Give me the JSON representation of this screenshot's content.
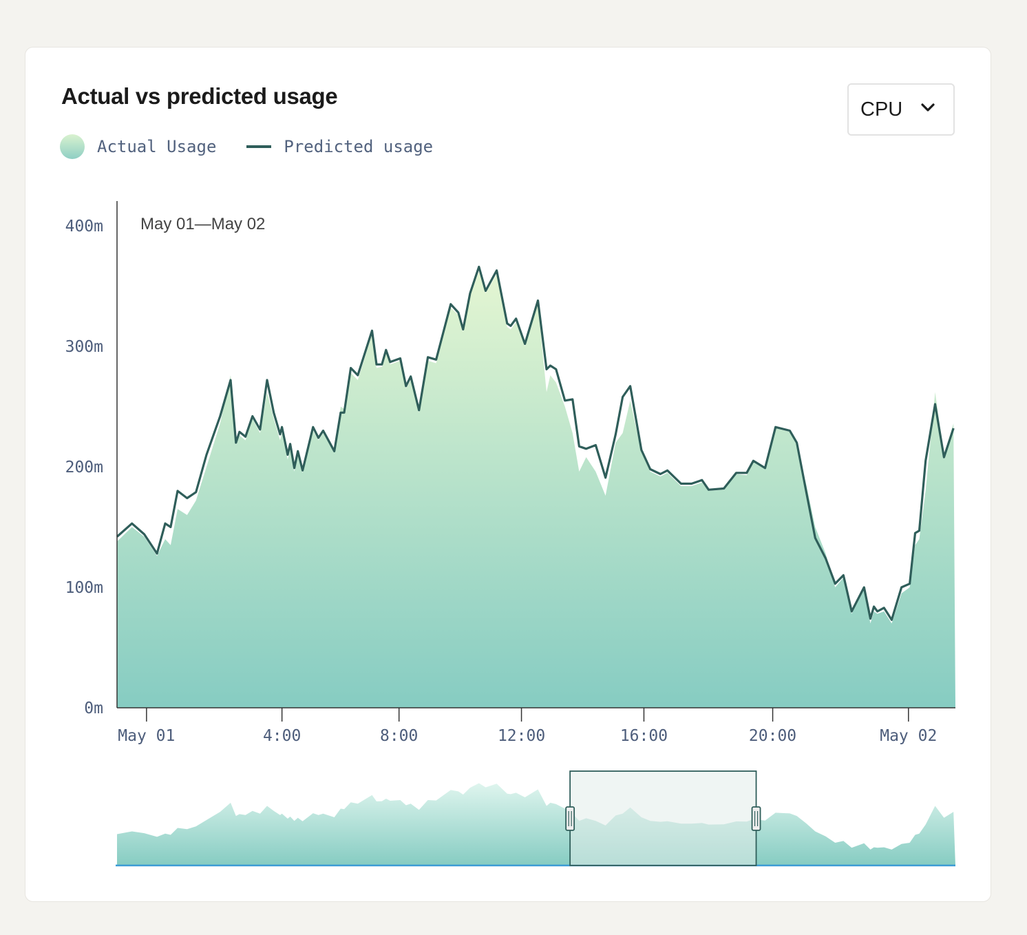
{
  "card": {
    "title": "Actual vs predicted usage"
  },
  "dropdown": {
    "selected": "CPU",
    "icon": "chevron-down-icon"
  },
  "colors": {
    "line": "#2f5e5a",
    "area_top": "#ddf3cf",
    "area_bottom": "#86ccc2",
    "axis": "#333333",
    "tick_text": "#4d5d7b",
    "baseline": "#3a9bd5"
  },
  "chart_data": {
    "type": "area",
    "title": "Actual vs predicted usage",
    "range_label": "May 01—May 02",
    "xlabel": "",
    "ylabel": "",
    "x_unit": "hours since May 01 00:00",
    "xlim": [
      -0.93,
      25.5
    ],
    "ylim": [
      0,
      400
    ],
    "grid": false,
    "legend": {
      "placement": "top-left",
      "entries": [
        "Actual Usage",
        "Predicted usage"
      ]
    },
    "y_ticks": [
      {
        "value": 0,
        "label": "0m"
      },
      {
        "value": 100,
        "label": "100m"
      },
      {
        "value": 200,
        "label": "200m"
      },
      {
        "value": 300,
        "label": "300m"
      },
      {
        "value": 400,
        "label": "400m"
      }
    ],
    "x_ticks": [
      {
        "value": 0,
        "label": "May 01"
      },
      {
        "value": 4.27,
        "label": "4:00"
      },
      {
        "value": 7.96,
        "label": "8:00"
      },
      {
        "value": 11.82,
        "label": "12:00"
      },
      {
        "value": 15.68,
        "label": "16:00"
      },
      {
        "value": 19.74,
        "label": "20:00"
      },
      {
        "value": 24.02,
        "label": "May 02"
      }
    ],
    "x": [
      -0.93,
      -0.46,
      -0.07,
      0.33,
      0.59,
      0.76,
      0.98,
      1.28,
      1.56,
      1.89,
      2.32,
      2.65,
      2.82,
      2.93,
      3.12,
      3.34,
      3.58,
      3.8,
      4.01,
      4.21,
      4.27,
      4.45,
      4.53,
      4.66,
      4.77,
      4.92,
      5.25,
      5.42,
      5.57,
      5.92,
      6.12,
      6.23,
      6.44,
      6.66,
      7.11,
      7.25,
      7.42,
      7.55,
      7.68,
      8.0,
      8.18,
      8.33,
      8.59,
      8.87,
      9.13,
      9.59,
      9.83,
      9.98,
      10.2,
      10.48,
      10.69,
      11.04,
      11.37,
      11.48,
      11.65,
      11.93,
      12.34,
      12.61,
      12.73,
      12.91,
      13.19,
      13.43,
      13.64,
      13.86,
      14.16,
      14.47,
      14.79,
      15.01,
      15.25,
      15.6,
      15.88,
      16.2,
      16.42,
      16.85,
      17.18,
      17.51,
      17.72,
      18.2,
      18.59,
      18.92,
      19.13,
      19.5,
      19.83,
      20.28,
      20.5,
      20.8,
      21.08,
      21.41,
      21.71,
      21.97,
      22.23,
      22.62,
      22.82,
      22.93,
      23.04,
      23.25,
      23.49,
      23.8,
      24.06,
      24.23,
      24.36,
      24.56,
      24.86,
      25.14,
      25.44
    ],
    "series": [
      {
        "name": "Predicted usage",
        "type": "line",
        "values": [
          142,
          153,
          144,
          128,
          153,
          150,
          180,
          174,
          179,
          210,
          242,
          272,
          220,
          229,
          225,
          242,
          231,
          272,
          245,
          227,
          233,
          210,
          219,
          199,
          213,
          197,
          233,
          224,
          230,
          213,
          245,
          245,
          282,
          276,
          313,
          285,
          285,
          297,
          287,
          290,
          267,
          275,
          247,
          291,
          289,
          335,
          328,
          314,
          344,
          366,
          346,
          363,
          319,
          317,
          323,
          302,
          338,
          281,
          284,
          281,
          255,
          256,
          217,
          215,
          218,
          191,
          227,
          258,
          267,
          214,
          198,
          194,
          197,
          186,
          186,
          189,
          181,
          182,
          195,
          195,
          205,
          199,
          233,
          230,
          220,
          179,
          141,
          124,
          103,
          110,
          80,
          100,
          74,
          84,
          80,
          83,
          73,
          100,
          103,
          145,
          147,
          205,
          252,
          208,
          232
        ]
      },
      {
        "name": "Actual Usage",
        "type": "area",
        "values": [
          138,
          150,
          142,
          126,
          140,
          135,
          165,
          160,
          172,
          200,
          236,
          276,
          218,
          226,
          222,
          240,
          228,
          262,
          240,
          222,
          228,
          206,
          215,
          196,
          210,
          195,
          230,
          222,
          228,
          212,
          250,
          248,
          278,
          272,
          310,
          282,
          283,
          294,
          285,
          288,
          265,
          272,
          245,
          288,
          286,
          332,
          326,
          312,
          342,
          362,
          344,
          360,
          316,
          314,
          320,
          300,
          335,
          262,
          276,
          270,
          250,
          228,
          196,
          208,
          196,
          176,
          220,
          228,
          255,
          212,
          196,
          192,
          195,
          184,
          184,
          187,
          180,
          181,
          194,
          193,
          204,
          198,
          232,
          229,
          218,
          185,
          150,
          128,
          100,
          108,
          78,
          98,
          70,
          80,
          78,
          80,
          70,
          95,
          100,
          135,
          140,
          180,
          262,
          210,
          236
        ]
      }
    ],
    "navigator": {
      "selection_start_fraction": 0.542,
      "selection_end_fraction": 0.764
    }
  }
}
